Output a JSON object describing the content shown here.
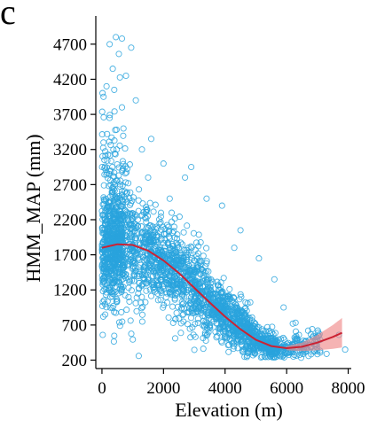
{
  "panel_label": "c",
  "chart_data": {
    "type": "scatter",
    "title": "",
    "xlabel": "Elevation (m)",
    "ylabel": "HMM_MAP (mm)",
    "xlim": [
      -200,
      8100
    ],
    "ylim": [
      80,
      4900
    ],
    "x_ticks": [
      0,
      2000,
      4000,
      6000,
      8000
    ],
    "y_ticks": [
      200,
      700,
      1200,
      1700,
      2200,
      2700,
      3200,
      3700,
      4200,
      4700
    ],
    "grid": false,
    "legend": "none",
    "point_color": "#29a3dd",
    "fit_color": "#cc2233",
    "band_color": "#f08a8a",
    "trend": [
      {
        "x": 0,
        "y": 1800
      },
      {
        "x": 500,
        "y": 1850
      },
      {
        "x": 1000,
        "y": 1840
      },
      {
        "x": 1500,
        "y": 1760
      },
      {
        "x": 2000,
        "y": 1620
      },
      {
        "x": 2500,
        "y": 1440
      },
      {
        "x": 3000,
        "y": 1230
      },
      {
        "x": 3500,
        "y": 1020
      },
      {
        "x": 4000,
        "y": 820
      },
      {
        "x": 4500,
        "y": 640
      },
      {
        "x": 5000,
        "y": 490
      },
      {
        "x": 5500,
        "y": 400
      },
      {
        "x": 6000,
        "y": 370
      },
      {
        "x": 6500,
        "y": 390
      },
      {
        "x": 7000,
        "y": 450
      },
      {
        "x": 7500,
        "y": 530
      },
      {
        "x": 7800,
        "y": 590
      }
    ],
    "band": [
      {
        "x": 6000,
        "lo": 340,
        "hi": 400
      },
      {
        "x": 6500,
        "lo": 330,
        "hi": 450
      },
      {
        "x": 7000,
        "lo": 340,
        "hi": 560
      },
      {
        "x": 7500,
        "lo": 360,
        "hi": 700
      },
      {
        "x": 7800,
        "lo": 380,
        "hi": 800
      }
    ],
    "outliers": [
      {
        "x": 450,
        "y": 4800
      },
      {
        "x": 650,
        "y": 4780
      },
      {
        "x": 250,
        "y": 4700
      },
      {
        "x": 550,
        "y": 4560
      },
      {
        "x": 950,
        "y": 4650
      },
      {
        "x": 350,
        "y": 4350
      },
      {
        "x": 780,
        "y": 4250
      },
      {
        "x": 150,
        "y": 4100
      },
      {
        "x": 400,
        "y": 4050
      },
      {
        "x": 1100,
        "y": 3900
      },
      {
        "x": 50,
        "y": 3950
      },
      {
        "x": 650,
        "y": 3800
      },
      {
        "x": 250,
        "y": 3650
      },
      {
        "x": 1600,
        "y": 3350
      },
      {
        "x": 1300,
        "y": 3200
      },
      {
        "x": 2000,
        "y": 3000
      },
      {
        "x": 2700,
        "y": 2800
      },
      {
        "x": 2900,
        "y": 2950
      },
      {
        "x": 3400,
        "y": 2500
      },
      {
        "x": 3900,
        "y": 2400
      },
      {
        "x": 4500,
        "y": 2050
      },
      {
        "x": 4300,
        "y": 1800
      },
      {
        "x": 5100,
        "y": 1650
      },
      {
        "x": 5600,
        "y": 1350
      },
      {
        "x": 5900,
        "y": 950
      },
      {
        "x": 6200,
        "y": 720
      },
      {
        "x": 6400,
        "y": 560
      },
      {
        "x": 6700,
        "y": 620
      },
      {
        "x": 7000,
        "y": 330
      },
      {
        "x": 7300,
        "y": 290
      },
      {
        "x": 7700,
        "y": 560
      },
      {
        "x": 7900,
        "y": 350
      },
      {
        "x": 50,
        "y": 3300
      },
      {
        "x": 700,
        "y": 3500
      },
      {
        "x": 1500,
        "y": 2800
      },
      {
        "x": 2200,
        "y": 2500
      }
    ]
  }
}
